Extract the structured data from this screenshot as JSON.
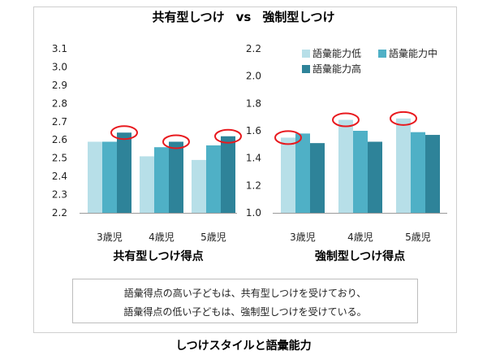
{
  "title": {
    "left": "共有型しつけ",
    "vs": "vs",
    "right": "強制型しつけ"
  },
  "chart_data": [
    {
      "type": "bar",
      "xlabel": "共有型しつけ得点",
      "categories": [
        "3歳児",
        "4歳児",
        "5歳児"
      ],
      "series": [
        {
          "name": "語彙能力低",
          "values": [
            2.59,
            2.51,
            2.49
          ]
        },
        {
          "name": "語彙能力中",
          "values": [
            2.59,
            2.56,
            2.57
          ]
        },
        {
          "name": "語彙能力高",
          "values": [
            2.64,
            2.59,
            2.62
          ]
        }
      ],
      "ylim": [
        2.2,
        3.1
      ],
      "yticks": [
        "2.2",
        "2.3",
        "2.4",
        "2.5",
        "2.6",
        "2.7",
        "2.8",
        "2.9",
        "3.0",
        "3.1"
      ],
      "highlighted_series": [
        "語彙能力高",
        "語彙能力高",
        "語彙能力高"
      ]
    },
    {
      "type": "bar",
      "xlabel": "強制型しつけ得点",
      "categories": [
        "3歳児",
        "4歳児",
        "5歳児"
      ],
      "series": [
        {
          "name": "語彙能力低",
          "values": [
            1.55,
            1.68,
            1.69
          ]
        },
        {
          "name": "語彙能力中",
          "values": [
            1.58,
            1.6,
            1.59
          ]
        },
        {
          "name": "語彙能力高",
          "values": [
            1.51,
            1.52,
            1.57
          ]
        }
      ],
      "ylim": [
        1.0,
        2.2
      ],
      "yticks": [
        "1.0",
        "1.2",
        "1.4",
        "1.6",
        "1.8",
        "2.0",
        "2.2"
      ],
      "highlighted_series": [
        "語彙能力低",
        "語彙能力低",
        "語彙能力低"
      ]
    }
  ],
  "legend": [
    "語彙能力低",
    "語彙能力中",
    "語彙能力高"
  ],
  "colors": {
    "語彙能力低": "#b7dfe8",
    "語彙能力中": "#4fb0c6",
    "語彙能力高": "#2e8399",
    "highlight": "#e8191e"
  },
  "note": {
    "line1": "語彙得点の高い子どもは、共有型しつけを受けており、",
    "line2": "語彙得点の低い子どもは、強制型しつけを受けている。"
  },
  "caption": "しつけスタイルと語彙能力"
}
